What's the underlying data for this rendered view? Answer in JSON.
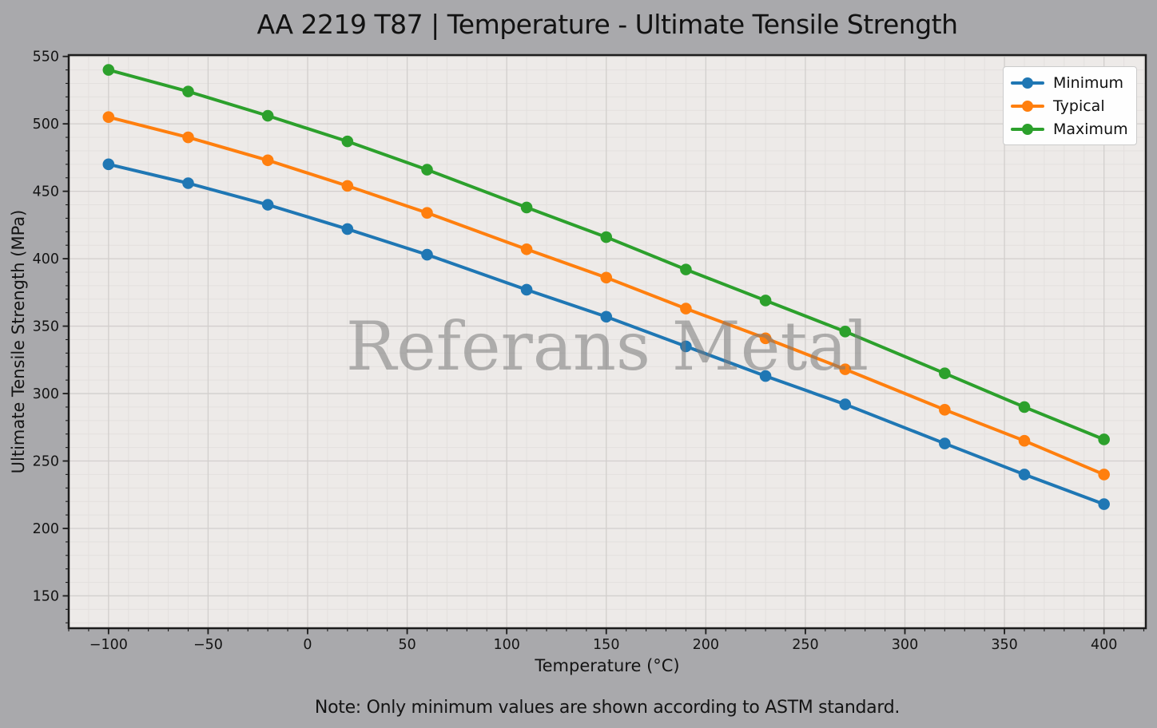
{
  "title": "AA 2219 T87 | Temperature - Ultimate Tensile Strength",
  "watermark": "Referans Metal",
  "note": "Note: Only minimum values are shown according to ASTM standard.",
  "colors": {
    "figure_background": "#a9a9ac",
    "plot_background": "#edeae8",
    "grid_major": "#d2cfcd",
    "grid_minor": "#e3e0de",
    "spine": "#1c1c1c",
    "text": "#141414",
    "legend_background": "#fefefe",
    "watermark_gray": "#787878"
  },
  "chart_data": {
    "type": "line",
    "title": "AA 2219 T87 | Temperature - Ultimate Tensile Strength",
    "xlabel": "Temperature (°C)",
    "ylabel": "Ultimate Tensile Strength (MPa)",
    "x": [
      -100,
      -60,
      -20,
      20,
      60,
      110,
      150,
      190,
      230,
      270,
      320,
      360,
      400
    ],
    "series": [
      {
        "name": "Minimum",
        "color": "#1f77b4",
        "values": [
          470,
          456,
          440,
          422,
          403,
          377,
          357,
          335,
          313,
          292,
          263,
          240,
          218
        ]
      },
      {
        "name": "Typical",
        "color": "#ff7f0e",
        "values": [
          505,
          490,
          473,
          454,
          434,
          407,
          386,
          363,
          341,
          318,
          288,
          265,
          240
        ]
      },
      {
        "name": "Maximum",
        "color": "#2ca02c",
        "values": [
          540,
          524,
          506,
          487,
          466,
          438,
          416,
          392,
          369,
          346,
          315,
          290,
          266
        ]
      }
    ],
    "xlim": [
      -120,
      421
    ],
    "ylim": [
      126,
      551
    ],
    "xticks": [
      -100,
      -50,
      0,
      50,
      100,
      150,
      200,
      250,
      300,
      350,
      400
    ],
    "yticks": [
      150,
      200,
      250,
      300,
      350,
      400,
      450,
      500,
      550
    ],
    "minor_step_x": 10,
    "minor_step_y": 10,
    "grid": true,
    "legend_position": "top-right",
    "legend": [
      "Minimum",
      "Typical",
      "Maximum"
    ]
  }
}
